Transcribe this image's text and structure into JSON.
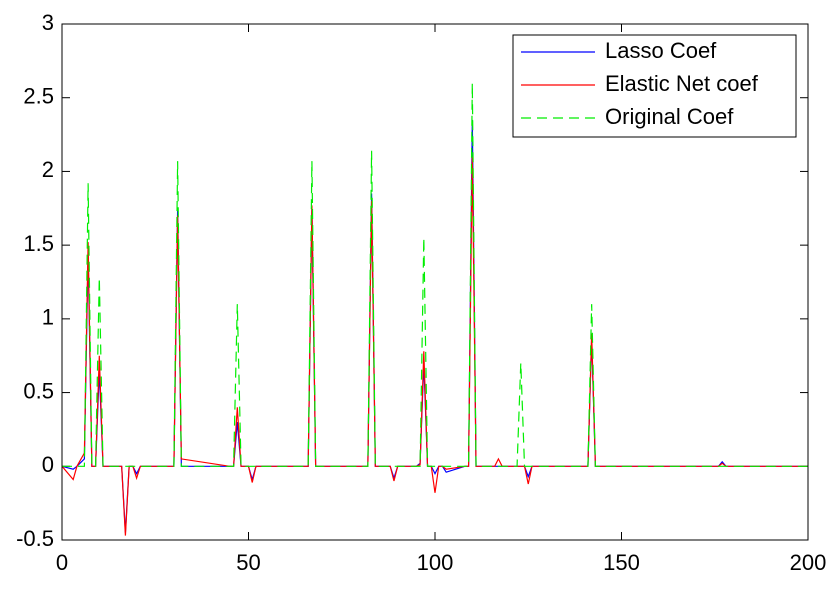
{
  "chart_data": {
    "type": "line",
    "x": [
      0,
      3,
      4,
      6,
      7,
      8,
      9,
      10,
      11,
      12,
      16,
      17,
      18,
      19,
      20,
      21,
      29,
      30,
      31,
      32,
      45,
      46,
      47,
      48,
      50,
      51,
      52,
      65,
      66,
      67,
      68,
      81,
      82,
      83,
      84,
      88,
      89,
      90,
      91,
      95,
      96,
      97,
      98,
      99,
      100,
      101,
      102,
      103,
      108,
      109,
      110,
      111,
      116,
      117,
      118,
      122,
      123,
      124,
      125,
      126,
      127,
      140,
      141,
      142,
      143,
      176,
      177,
      178,
      200
    ],
    "series": [
      {
        "name": "Lasso Coef",
        "color": "#0000ff",
        "dash": false,
        "values": [
          0,
          -0.02,
          0,
          0.05,
          1.45,
          0,
          0,
          0.65,
          0,
          0,
          0,
          -0.45,
          0,
          0,
          -0.05,
          0,
          0,
          0,
          1.75,
          0,
          0,
          0,
          0.3,
          0,
          0,
          -0.09,
          0,
          0,
          0,
          1.75,
          0,
          0,
          0,
          1.85,
          0,
          0,
          -0.08,
          0,
          0,
          0,
          0.02,
          0.7,
          0,
          0,
          -0.05,
          0,
          0,
          -0.04,
          0,
          0,
          2.35,
          0,
          0,
          0,
          0,
          0,
          0,
          0,
          -0.07,
          0,
          0,
          0,
          0,
          0.87,
          0,
          0,
          0.03,
          0,
          0
        ]
      },
      {
        "name": "Elastic Net coef",
        "color": "#ff0000",
        "dash": false,
        "values": [
          0,
          -0.09,
          0,
          0.09,
          1.52,
          0,
          0,
          0.75,
          0,
          0,
          0,
          -0.47,
          0,
          0,
          -0.08,
          0,
          0,
          0,
          1.7,
          0.05,
          0,
          0,
          0.4,
          0,
          0,
          -0.11,
          0,
          0,
          0,
          1.77,
          0,
          0,
          0,
          1.8,
          0,
          0,
          -0.1,
          0,
          0,
          0,
          0.01,
          0.78,
          0,
          0,
          -0.18,
          0,
          0,
          -0.02,
          0,
          0,
          2.1,
          0,
          0,
          0.05,
          0,
          0,
          0,
          0,
          -0.12,
          0,
          0,
          0,
          0,
          0.9,
          0,
          0,
          0.02,
          0,
          0
        ]
      },
      {
        "name": "Original Coef",
        "color": "#00ee00",
        "dash": true,
        "values": [
          0,
          0,
          0,
          0,
          1.92,
          0,
          0,
          1.28,
          0,
          0,
          0,
          0,
          0,
          0,
          0,
          0,
          0,
          0,
          2.07,
          0,
          0,
          0,
          1.1,
          0,
          0,
          0,
          0,
          0,
          0,
          2.07,
          0,
          0,
          0,
          2.14,
          0,
          0,
          0,
          0,
          0,
          0,
          0,
          1.55,
          0,
          0,
          0,
          0,
          0,
          0,
          0,
          0,
          2.6,
          0,
          0,
          0,
          0,
          0,
          0.7,
          0,
          0,
          0,
          0,
          0,
          0,
          1.1,
          0,
          0,
          0,
          0,
          0
        ]
      }
    ],
    "xlim": [
      0,
      200
    ],
    "xticks": [
      0,
      50,
      100,
      150,
      200
    ],
    "ylim": [
      -0.5,
      3
    ],
    "yticks": [
      -0.5,
      0,
      0.5,
      1,
      1.5,
      2,
      2.5,
      3
    ],
    "grid": false,
    "legend": "upper right"
  }
}
